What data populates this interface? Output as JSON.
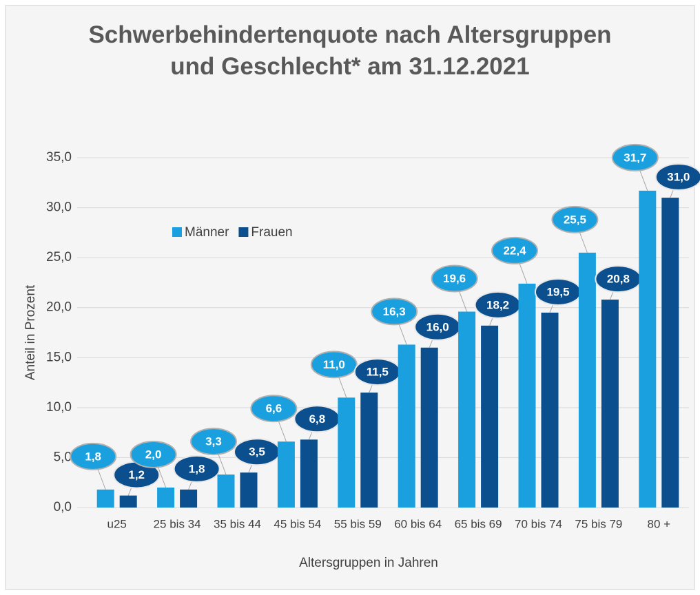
{
  "chart_data": {
    "type": "bar",
    "title": "Schwerbehindertenquote nach Altersgruppen und Geschlecht* am 31.12.2021",
    "xlabel": "Altersgruppen in Jahren",
    "ylabel": "Anteil in Prozent",
    "categories": [
      "u25",
      "25 bis 34",
      "35 bis 44",
      "45 bis 54",
      "55 bis 59",
      "60 bis 64",
      "65 bis 69",
      "70 bis 74",
      "75 bis 79",
      "80 +"
    ],
    "series": [
      {
        "name": "Männer",
        "color": "#1aa0de",
        "values": [
          1.8,
          2.0,
          3.3,
          6.6,
          11.0,
          16.3,
          19.6,
          22.4,
          25.5,
          31.7
        ],
        "value_labels": [
          "1,8",
          "2,0",
          "3,3",
          "6,6",
          "11,0",
          "16,3",
          "19,6",
          "22,4",
          "25,5",
          "31,7"
        ]
      },
      {
        "name": "Frauen",
        "color": "#0b4f8e",
        "values": [
          1.2,
          1.8,
          3.5,
          6.8,
          11.5,
          16.0,
          18.2,
          19.5,
          20.8,
          31.0
        ],
        "value_labels": [
          "1,2",
          "1,8",
          "3,5",
          "6,8",
          "11,5",
          "16,0",
          "18,2",
          "19,5",
          "20,8",
          "31,0"
        ]
      }
    ],
    "ylim": [
      0,
      35
    ],
    "yticks": [
      {
        "value": 0,
        "label": "0,0"
      },
      {
        "value": 5,
        "label": "5,0"
      },
      {
        "value": 10,
        "label": "10,0"
      },
      {
        "value": 15,
        "label": "15,0"
      },
      {
        "value": 20,
        "label": "20,0"
      },
      {
        "value": 25,
        "label": "25,0"
      },
      {
        "value": 30,
        "label": "30,0"
      },
      {
        "value": 35,
        "label": "35,0"
      }
    ],
    "grid": true,
    "legend": "upper left"
  }
}
